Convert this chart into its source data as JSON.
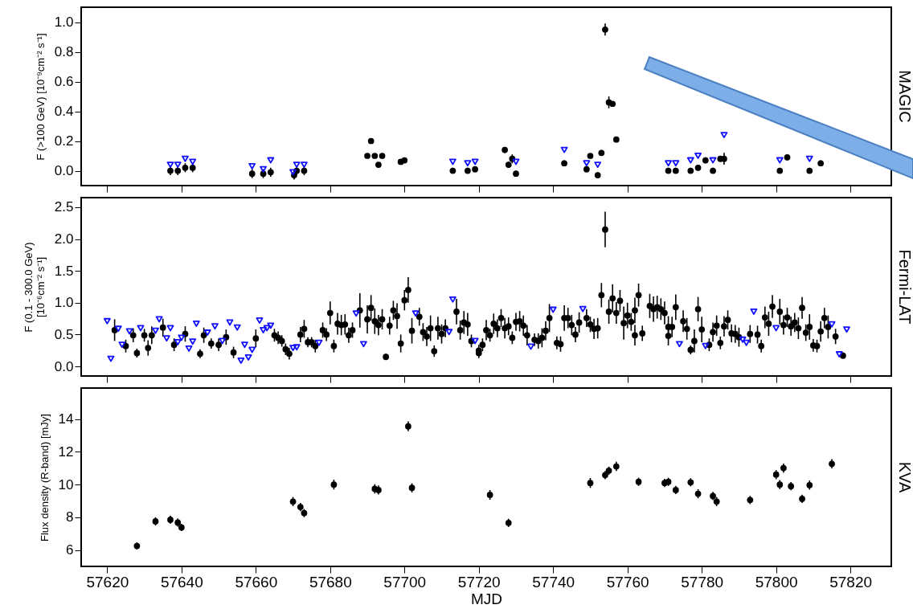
{
  "chart_data": [
    {
      "type": "scatter",
      "ylabel": "F (>100 GeV) [10⁻⁹cm⁻² s⁻¹]",
      "y2label": "MAGIC",
      "xlim": [
        57613,
        57831
      ],
      "xticks": [
        57620,
        57640,
        57660,
        57680,
        57700,
        57720,
        57740,
        57760,
        57780,
        57800,
        57820
      ],
      "ylim": [
        -0.1,
        1.1
      ],
      "yticks": [
        {
          "value": 0,
          "label": "0.0"
        },
        0.2,
        0.4,
        0.6,
        0.8,
        {
          "value": 1,
          "label": "1.0"
        }
      ],
      "tick_labels": "y",
      "marker": "circle",
      "series": [
        {
          "color": "#000000",
          "x": [
            57637,
            57639,
            57641,
            57643,
            57659,
            57662,
            57664,
            57670.3,
            57671,
            57673,
            57690,
            57691,
            57692,
            57693,
            57694,
            57699,
            57700,
            57713,
            57717,
            57719,
            57727,
            57728,
            57729,
            57730,
            57743,
            57749,
            57750,
            57752,
            57753,
            57754,
            57755,
            57756,
            57757,
            57771,
            57773,
            57777,
            57779,
            57781,
            57783,
            57785,
            57786,
            57801,
            57803,
            57809,
            57812
          ],
          "values": [
            0.0,
            0.0,
            0.02,
            0.02,
            -0.02,
            -0.02,
            -0.01,
            -0.03,
            0.0,
            0.0,
            0.1,
            0.2,
            0.1,
            0.04,
            0.1,
            0.06,
            0.07,
            0.0,
            0.0,
            0.01,
            0.14,
            0.04,
            0.08,
            -0.02,
            0.05,
            0.01,
            0.1,
            -0.03,
            0.12,
            0.95,
            0.46,
            0.45,
            0.21,
            0.0,
            0.0,
            0.0,
            0.02,
            0.07,
            0.0,
            0.08,
            0.08,
            0.0,
            0.09,
            0.0,
            0.05
          ],
          "errors": [
            0.03,
            0.03,
            0.03,
            0.03,
            0.03,
            0.03,
            0.03,
            0.03,
            0.03,
            0.03,
            null,
            null,
            null,
            null,
            null,
            null,
            null,
            0.02,
            0.02,
            0.02,
            0.02,
            0.02,
            0.03,
            0.02,
            0.02,
            0.02,
            null,
            0.02,
            0.02,
            0.04,
            0.04,
            0.01,
            0.01,
            0.02,
            0.02,
            0.02,
            0.02,
            0.02,
            0.02,
            0.02,
            0.04,
            0.02,
            0.02,
            0.02,
            0.02
          ]
        },
        {
          "color": "#1010ff",
          "marker": "triangle",
          "x": [
            57637,
            57639,
            57641,
            57643,
            57659,
            57662,
            57664,
            57670,
            57671,
            57673,
            57713,
            57717,
            57719,
            57730,
            57743,
            57749,
            57752,
            57771,
            57773,
            57777,
            57779,
            57783,
            57786,
            57801,
            57809
          ],
          "values": [
            0.04,
            0.04,
            0.08,
            0.06,
            0.03,
            0.01,
            0.07,
            -0.01,
            0.04,
            0.04,
            0.06,
            0.05,
            0.06,
            0.06,
            0.14,
            0.05,
            0.04,
            0.05,
            0.05,
            0.07,
            0.1,
            0.07,
            0.24,
            0.07,
            0.08
          ]
        }
      ]
    },
    {
      "type": "scatter",
      "ylabel": "F (0.1 - 300.0 GeV)\n[10⁻⁶cm⁻² s⁻¹]",
      "y2label": "Fermi-LAT",
      "xlim": [
        57613,
        57831
      ],
      "xticks": [
        57620,
        57640,
        57660,
        57680,
        57700,
        57720,
        57740,
        57760,
        57780,
        57800,
        57820
      ],
      "ylim": [
        -0.15,
        2.65
      ],
      "yticks": [
        {
          "value": 0,
          "label": "0.0"
        },
        0.5,
        {
          "value": 1,
          "label": "1.0"
        },
        1.5,
        {
          "value": 2,
          "label": "2.0"
        },
        2.5
      ],
      "tick_labels": "y",
      "marker": "circle",
      "series": [
        {
          "color": "#000000",
          "x": [
            57622,
            57625,
            57627,
            57628,
            57630,
            57631,
            57632,
            57635,
            57638,
            57641,
            57645,
            57646,
            57648,
            57650,
            57652,
            57654,
            57660,
            57665,
            57666,
            57667,
            57668,
            57669,
            57672,
            57673,
            57674,
            57675,
            57676,
            57678,
            57679,
            57680,
            57681,
            57682,
            57683,
            57684,
            57685,
            57686,
            57688,
            57690,
            57691,
            57692,
            57693,
            57694,
            57695,
            57696,
            57697,
            57698,
            57699,
            57700,
            57701,
            57702,
            57704,
            57705,
            57706,
            57707,
            57708,
            57709,
            57710,
            57711,
            57714,
            57715,
            57716,
            57717,
            57718,
            57720,
            57720,
            57721,
            57722,
            57723,
            57724,
            57725,
            57726,
            57727,
            57728,
            57729,
            57730,
            57731,
            57732,
            57733,
            57735,
            57736,
            57737,
            57738,
            57739,
            57741,
            57742,
            57743,
            57744,
            57745,
            57746,
            57747,
            57749,
            57750,
            57751,
            57752,
            57753,
            57754,
            57755,
            57756,
            57757,
            57758,
            57759,
            57760,
            57761,
            57762,
            57762,
            57763,
            57764,
            57766,
            57767,
            57768,
            57769,
            57770,
            57771,
            57771,
            57772,
            57773,
            57775,
            57776,
            57777,
            57778,
            57779,
            57780,
            57782,
            57783,
            57784,
            57785,
            57786,
            57787,
            57788,
            57789,
            57790,
            57793,
            57795,
            57796,
            57797,
            57798,
            57799,
            57801,
            57802,
            57803,
            57804,
            57805,
            57806,
            57807,
            57808,
            57809,
            57810,
            57811,
            57812,
            57813,
            57814,
            57816,
            57818
          ],
          "values": [
            0.57,
            0.32,
            0.49,
            0.21,
            0.49,
            0.29,
            0.49,
            0.61,
            0.34,
            0.51,
            0.2,
            0.49,
            0.36,
            0.34,
            0.46,
            0.22,
            0.44,
            0.49,
            0.45,
            0.4,
            0.27,
            0.2,
            0.5,
            0.59,
            0.38,
            0.38,
            0.32,
            0.57,
            0.5,
            0.84,
            0.32,
            0.67,
            0.65,
            0.66,
            0.49,
            0.57,
            0.88,
            0.74,
            0.92,
            0.71,
            0.65,
            0.74,
            0.15,
            0.64,
            0.88,
            0.79,
            0.36,
            1.04,
            1.2,
            0.56,
            0.78,
            0.54,
            0.47,
            0.6,
            0.24,
            0.6,
            0.51,
            0.6,
            0.86,
            0.57,
            0.69,
            0.66,
            0.4,
            0.21,
            0.25,
            0.34,
            0.57,
            0.49,
            0.67,
            0.6,
            0.76,
            0.6,
            0.63,
            0.45,
            0.7,
            0.71,
            0.64,
            0.49,
            0.42,
            0.4,
            0.45,
            0.56,
            0.76,
            0.37,
            0.35,
            0.76,
            0.76,
            0.65,
            0.5,
            0.69,
            0.76,
            0.66,
            0.59,
            0.6,
            1.12,
            2.15,
            0.86,
            1.07,
            0.84,
            1.03,
            0.68,
            0.8,
            0.7,
            0.49,
            0.88,
            1.12,
            0.52,
            0.95,
            0.9,
            0.93,
            0.9,
            0.84,
            0.62,
            0.48,
            0.62,
            0.93,
            0.71,
            0.59,
            0.26,
            0.4,
            0.9,
            0.58,
            0.34,
            0.54,
            0.64,
            0.37,
            0.63,
            0.73,
            0.52,
            0.51,
            0.46,
            0.51,
            0.5,
            0.32,
            0.77,
            0.67,
            0.94,
            0.86,
            0.65,
            0.77,
            0.63,
            0.69,
            0.6,
            0.92,
            0.53,
            0.62,
            0.33,
            0.32,
            0.55,
            0.76,
            0.62,
            0.47,
            0.17
          ],
          "errors": [
            0.17,
            0.1,
            0.11,
            0.07,
            0.1,
            0.12,
            0.14,
            0.14,
            0.1,
            0.12,
            0.07,
            0.12,
            0.08,
            0.1,
            0.12,
            0.09,
            0.14,
            0.1,
            0.1,
            0.09,
            0.09,
            0.09,
            0.12,
            0.14,
            0.08,
            0.08,
            0.1,
            0.12,
            0.1,
            0.18,
            0.1,
            0.17,
            0.16,
            0.16,
            0.12,
            0.12,
            0.27,
            0.22,
            0.2,
            0.2,
            0.16,
            0.16,
            0.05,
            0.14,
            0.15,
            0.2,
            0.14,
            0.16,
            0.2,
            0.2,
            0.14,
            0.14,
            0.15,
            0.2,
            0.09,
            0.18,
            0.15,
            0.14,
            0.2,
            0.15,
            0.18,
            0.18,
            0.1,
            0.08,
            0.09,
            0.1,
            0.16,
            0.1,
            0.16,
            0.14,
            0.14,
            0.16,
            0.14,
            0.1,
            0.14,
            0.16,
            0.16,
            0.16,
            0.1,
            0.12,
            0.15,
            0.15,
            0.22,
            0.1,
            0.12,
            0.2,
            0.16,
            0.16,
            0.12,
            0.16,
            0.14,
            0.12,
            0.16,
            0.16,
            0.19,
            0.28,
            0.19,
            0.22,
            0.17,
            0.17,
            0.26,
            0.2,
            0.14,
            0.16,
            0.2,
            0.18,
            0.12,
            0.19,
            0.2,
            0.18,
            0.17,
            0.18,
            0.17,
            0.15,
            0.16,
            0.2,
            0.17,
            0.17,
            0.07,
            0.18,
            0.19,
            0.2,
            0.1,
            0.15,
            0.16,
            0.1,
            0.16,
            0.15,
            0.14,
            0.14,
            0.15,
            0.14,
            0.14,
            0.1,
            0.17,
            0.19,
            0.18,
            0.2,
            0.15,
            0.15,
            0.15,
            0.15,
            0.17,
            0.17,
            0.13,
            0.2,
            0.1,
            0.1,
            0.16,
            0.16,
            0.18,
            0.12,
            0.05
          ]
        },
        {
          "color": "#1010ff",
          "marker": "triangle",
          "x": [
            57620,
            57621,
            57623,
            57624,
            57626,
            57629,
            57633,
            57634,
            57636,
            57637,
            57639,
            57640,
            57642,
            57643,
            57644,
            57647,
            57649,
            57651,
            57653,
            57655,
            57656,
            57657,
            57658,
            57659,
            57661,
            57662,
            57663,
            57664,
            57670,
            57671,
            57677,
            57687,
            57689,
            57703,
            57712,
            57713,
            57719,
            57734,
            57740,
            57748,
            57774,
            57781,
            57791,
            57792,
            57794,
            57800,
            57815,
            57817,
            57819
          ],
          "values": [
            0.71,
            0.12,
            0.59,
            0.34,
            0.55,
            0.6,
            0.56,
            0.74,
            0.44,
            0.6,
            0.38,
            0.45,
            0.28,
            0.39,
            0.67,
            0.53,
            0.63,
            0.4,
            0.69,
            0.61,
            0.09,
            0.34,
            0.14,
            0.26,
            0.72,
            0.57,
            0.6,
            0.64,
            0.29,
            0.3,
            0.37,
            0.83,
            0.35,
            0.83,
            0.54,
            1.05,
            0.4,
            0.31,
            0.89,
            0.9,
            0.35,
            0.32,
            0.42,
            0.37,
            0.86,
            0.6,
            0.66,
            0.19,
            0.58
          ]
        }
      ]
    },
    {
      "type": "scatter",
      "xlabel": "MJD",
      "ylabel": "Flux density (R-band) [mJy]",
      "y2label": "KVA",
      "xlim": [
        57613,
        57831
      ],
      "xticks": [
        57620,
        57640,
        57660,
        57680,
        57700,
        57720,
        57740,
        57760,
        57780,
        57800,
        57820
      ],
      "ylim": [
        5.0,
        15.9
      ],
      "yticks": [
        6,
        8,
        10,
        12,
        14
      ],
      "marker": "circle",
      "series": [
        {
          "color": "#000000",
          "x": [
            57628,
            57633,
            57637,
            57639,
            57640,
            57670,
            57672,
            57673,
            57681,
            57692,
            57693,
            57701,
            57702,
            57723,
            57728,
            57750,
            57754,
            57755,
            57757,
            57763,
            57770,
            57771,
            57773,
            57777,
            57779,
            57783,
            57784,
            57793,
            57800,
            57801,
            57802,
            57804,
            57807,
            57809,
            57815
          ],
          "values": [
            6.25,
            7.75,
            7.85,
            7.68,
            7.38,
            8.96,
            8.63,
            8.26,
            10.0,
            9.74,
            9.67,
            13.56,
            9.8,
            9.37,
            7.66,
            10.1,
            10.58,
            10.85,
            11.11,
            10.17,
            10.1,
            10.17,
            9.67,
            10.14,
            9.44,
            9.3,
            8.96,
            9.06,
            10.61,
            10.0,
            11.01,
            9.9,
            9.13,
            9.97,
            11.27
          ],
          "errors": [
            0.22,
            0.25,
            0.25,
            0.25,
            0.22,
            0.28,
            0.25,
            0.25,
            0.3,
            0.28,
            0.28,
            0.3,
            0.28,
            0.3,
            0.25,
            0.3,
            0.25,
            0.25,
            0.28,
            0.25,
            0.25,
            0.25,
            0.25,
            0.25,
            0.28,
            0.25,
            0.28,
            0.25,
            0.28,
            0.28,
            0.28,
            0.25,
            0.25,
            0.28,
            0.28
          ]
        }
      ]
    }
  ]
}
